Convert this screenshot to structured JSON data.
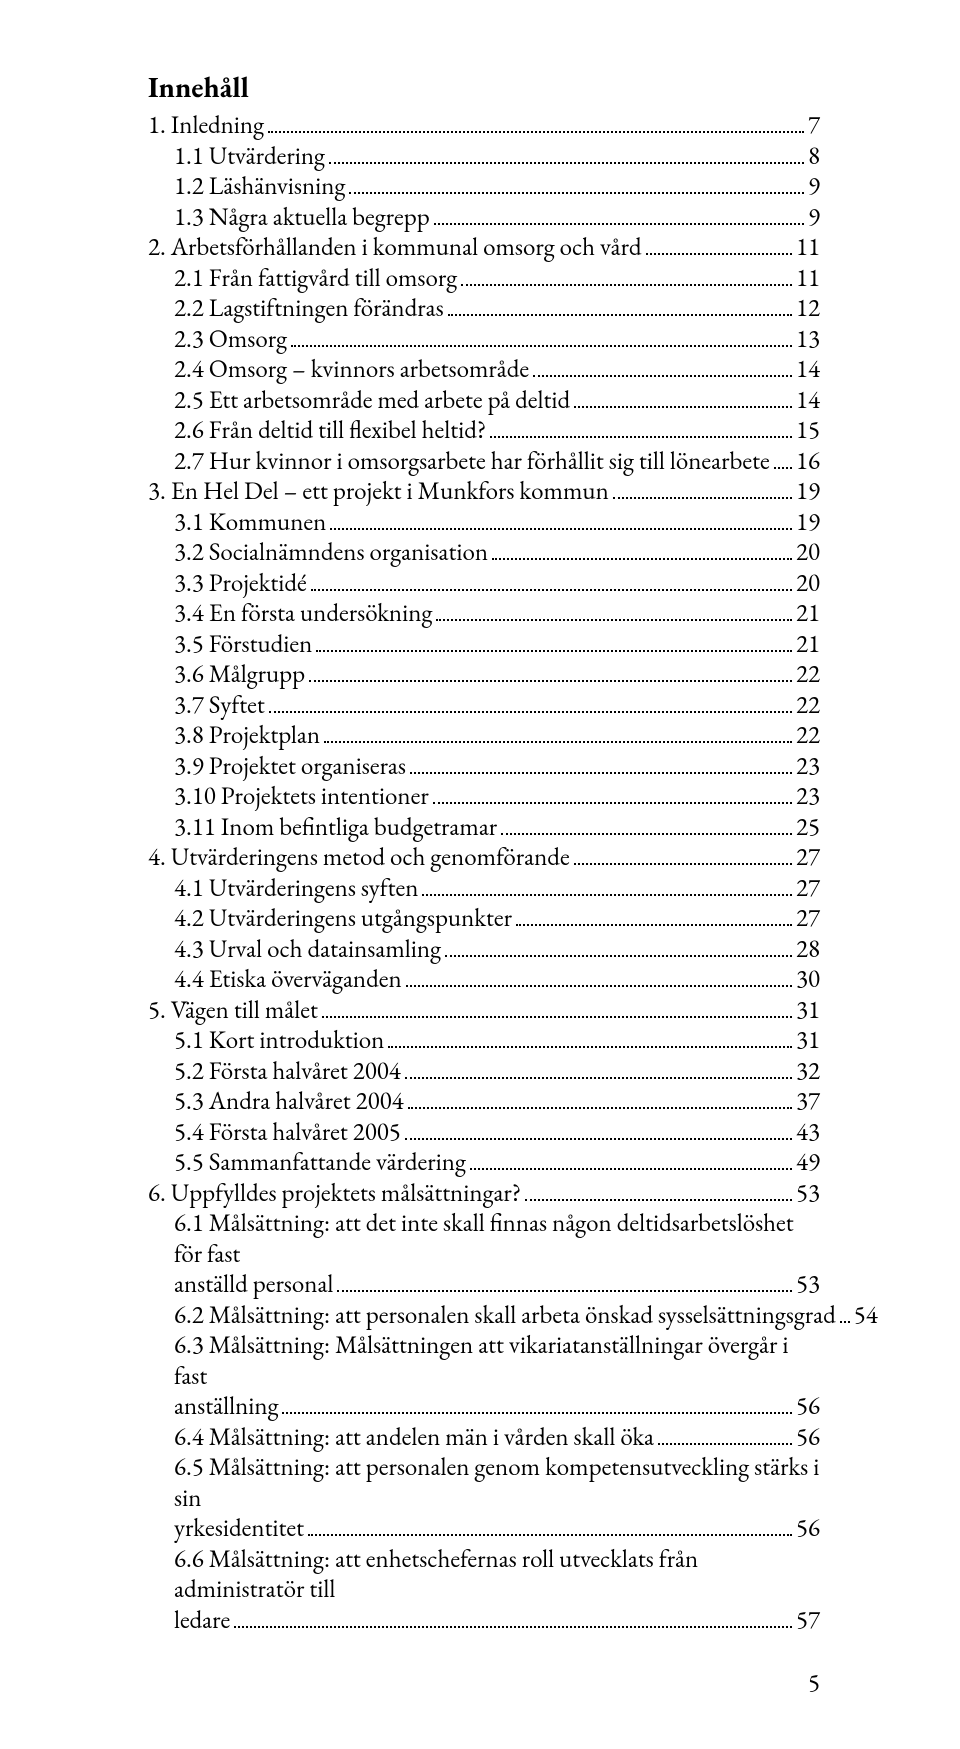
{
  "title": "Innehåll",
  "font_family": "Garamond, serif",
  "text_color": "#000000",
  "background_color": "#ffffff",
  "leader_style": "dotted",
  "page_number": "5",
  "entries": [
    {
      "level": 0,
      "text": "1. Inledning",
      "page": "7"
    },
    {
      "level": 1,
      "text": "1.1 Utvärdering",
      "page": "8"
    },
    {
      "level": 1,
      "text": "1.2 Läshänvisning",
      "page": "9"
    },
    {
      "level": 1,
      "text": "1.3 Några aktuella begrepp",
      "page": "9"
    },
    {
      "level": 0,
      "text": "2. Arbetsförhållanden i kommunal omsorg och vård",
      "page": "11"
    },
    {
      "level": 1,
      "text": "2.1 Från fattigvård till omsorg",
      "page": "11"
    },
    {
      "level": 1,
      "text": "2.2 Lagstiftningen förändras",
      "page": "12"
    },
    {
      "level": 1,
      "text": "2.3 Omsorg",
      "page": "13"
    },
    {
      "level": 1,
      "text": "2.4 Omsorg – kvinnors arbetsområde",
      "page": "14"
    },
    {
      "level": 1,
      "text": "2.5 Ett arbetsområde med arbete på deltid",
      "page": "14"
    },
    {
      "level": 1,
      "text": "2.6 Från deltid till flexibel heltid?",
      "page": "15"
    },
    {
      "level": 1,
      "text": "2.7 Hur kvinnor i omsorgsarbete har förhållit sig till lönearbete",
      "page": "16"
    },
    {
      "level": 0,
      "text": "3. En Hel Del – ett projekt i Munkfors kommun",
      "page": "19"
    },
    {
      "level": 1,
      "text": "3.1 Kommunen",
      "page": "19"
    },
    {
      "level": 1,
      "text": "3.2 Socialnämndens organisation",
      "page": "20"
    },
    {
      "level": 1,
      "text": "3.3 Projektidé",
      "page": "20"
    },
    {
      "level": 1,
      "text": "3.4 En första undersökning",
      "page": "21"
    },
    {
      "level": 1,
      "text": "3.5 Förstudien",
      "page": "21"
    },
    {
      "level": 1,
      "text": "3.6 Målgrupp",
      "page": "22"
    },
    {
      "level": 1,
      "text": "3.7 Syftet",
      "page": "22"
    },
    {
      "level": 1,
      "text": "3.8 Projektplan",
      "page": "22"
    },
    {
      "level": 1,
      "text": "3.9 Projektet organiseras",
      "page": "23"
    },
    {
      "level": 1,
      "text": "3.10 Projektets intentioner",
      "page": "23"
    },
    {
      "level": 1,
      "text": "3.11 Inom befintliga budgetramar",
      "page": "25"
    },
    {
      "level": 0,
      "text": "4. Utvärderingens metod och genomförande",
      "page": "27"
    },
    {
      "level": 1,
      "text": "4.1 Utvärderingens syften",
      "page": "27"
    },
    {
      "level": 1,
      "text": "4.2 Utvärderingens utgångspunkter",
      "page": "27"
    },
    {
      "level": 1,
      "text": "4.3 Urval och datainsamling",
      "page": "28"
    },
    {
      "level": 1,
      "text": "4.4 Etiska överväganden",
      "page": "30"
    },
    {
      "level": 0,
      "text": "5. Vägen till målet",
      "page": "31"
    },
    {
      "level": 1,
      "text": "5.1 Kort introduktion",
      "page": "31"
    },
    {
      "level": 1,
      "text": "5.2 Första halvåret 2004",
      "page": "32"
    },
    {
      "level": 1,
      "text": "5.3 Andra halvåret 2004",
      "page": "37"
    },
    {
      "level": 1,
      "text": "5.4 Första halvåret 2005",
      "page": "43"
    },
    {
      "level": 1,
      "text": "5.5 Sammanfattande värdering",
      "page": "49"
    },
    {
      "level": 0,
      "text": "6. Uppfylldes projektets målsättningar?",
      "page": "53"
    },
    {
      "level": 1,
      "wrap": true,
      "line1": "6.1 Målsättning: att det inte skall finnas någon deltidsarbetslöshet för fast",
      "line2": "anställd personal",
      "page": "53"
    },
    {
      "level": 1,
      "text": "6.2 Målsättning:  att personalen skall arbeta önskad sysselsättningsgrad",
      "page": "54"
    },
    {
      "level": 1,
      "wrap": true,
      "line1": "6.3 Målsättning: Målsättningen att vikariatanställningar övergår i fast",
      "line2": "anställning",
      "page": "56"
    },
    {
      "level": 1,
      "text": "6.4 Målsättning: att andelen män i vården skall öka",
      "page": "56"
    },
    {
      "level": 1,
      "wrap": true,
      "line1": "6.5 Målsättning: att personalen genom kompetensutveckling stärks i sin",
      "line2": "yrkesidentitet",
      "page": "56"
    },
    {
      "level": 1,
      "wrap": true,
      "line1": "6.6 Målsättning: att enhetschefernas roll utvecklats från administratör till",
      "line2": "ledare",
      "page": "57"
    }
  ]
}
